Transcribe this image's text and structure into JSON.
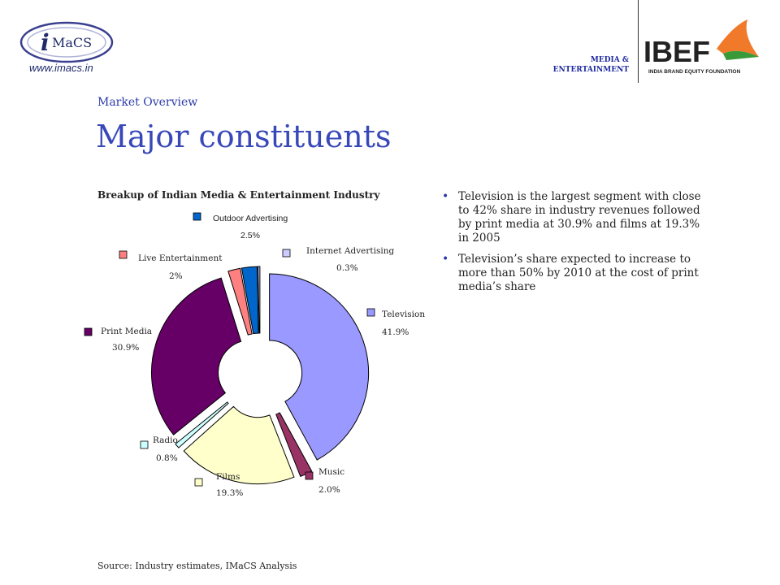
{
  "header": {
    "imacs_logo_text": "iMaCS",
    "imacs_url": "www.imacs.in",
    "section_tag": "MEDIA & ENTERTAINMENT",
    "ibef_logo_text": "IBEF",
    "ibef_logo_subtitle": "INDIA BRAND EQUITY FOUNDATION"
  },
  "breadcrumb": "Market Overview",
  "page_title": "Major constituents",
  "bullets": [
    "Television is the largest segment with close to 42% share in industry revenues followed by print media at 30.9% and films at 19.3% in 2005",
    "Television’s share expected to increase to more than 50% by 2010 at the cost of print media’s share"
  ],
  "source": "Source: Industry estimates, IMaCS Analysis",
  "colors": {
    "title": "#3848b8",
    "accent": "#2b3aa8"
  },
  "chart_data": {
    "type": "pie",
    "title": "Breakup of Indian Media & Entertainment  Industry",
    "donut": true,
    "exploded": true,
    "slices": [
      {
        "name": "Television",
        "value_label": "41.9%",
        "value": 41.9,
        "color": "#9999ff"
      },
      {
        "name": "Music",
        "value_label": "2.0%",
        "value": 2.0,
        "color": "#993366"
      },
      {
        "name": "Films",
        "value_label": "19.3%",
        "value": 19.3,
        "color": "#ffffcc"
      },
      {
        "name": "Radio",
        "value_label": "0.8%",
        "value": 0.8,
        "color": "#ccffff"
      },
      {
        "name": "Print Media",
        "value_label": "30.9%",
        "value": 30.9,
        "color": "#660066"
      },
      {
        "name": "Live Entertainment",
        "value_label": "2%",
        "value": 2.0,
        "color": "#ff8080"
      },
      {
        "name": "Outdoor Advertising",
        "value_label": "2.5%",
        "value": 2.5,
        "color": "#0066cc"
      },
      {
        "name": "Internet Advertising",
        "value_label": "0.3%",
        "value": 0.3,
        "color": "#ccccff"
      }
    ]
  }
}
